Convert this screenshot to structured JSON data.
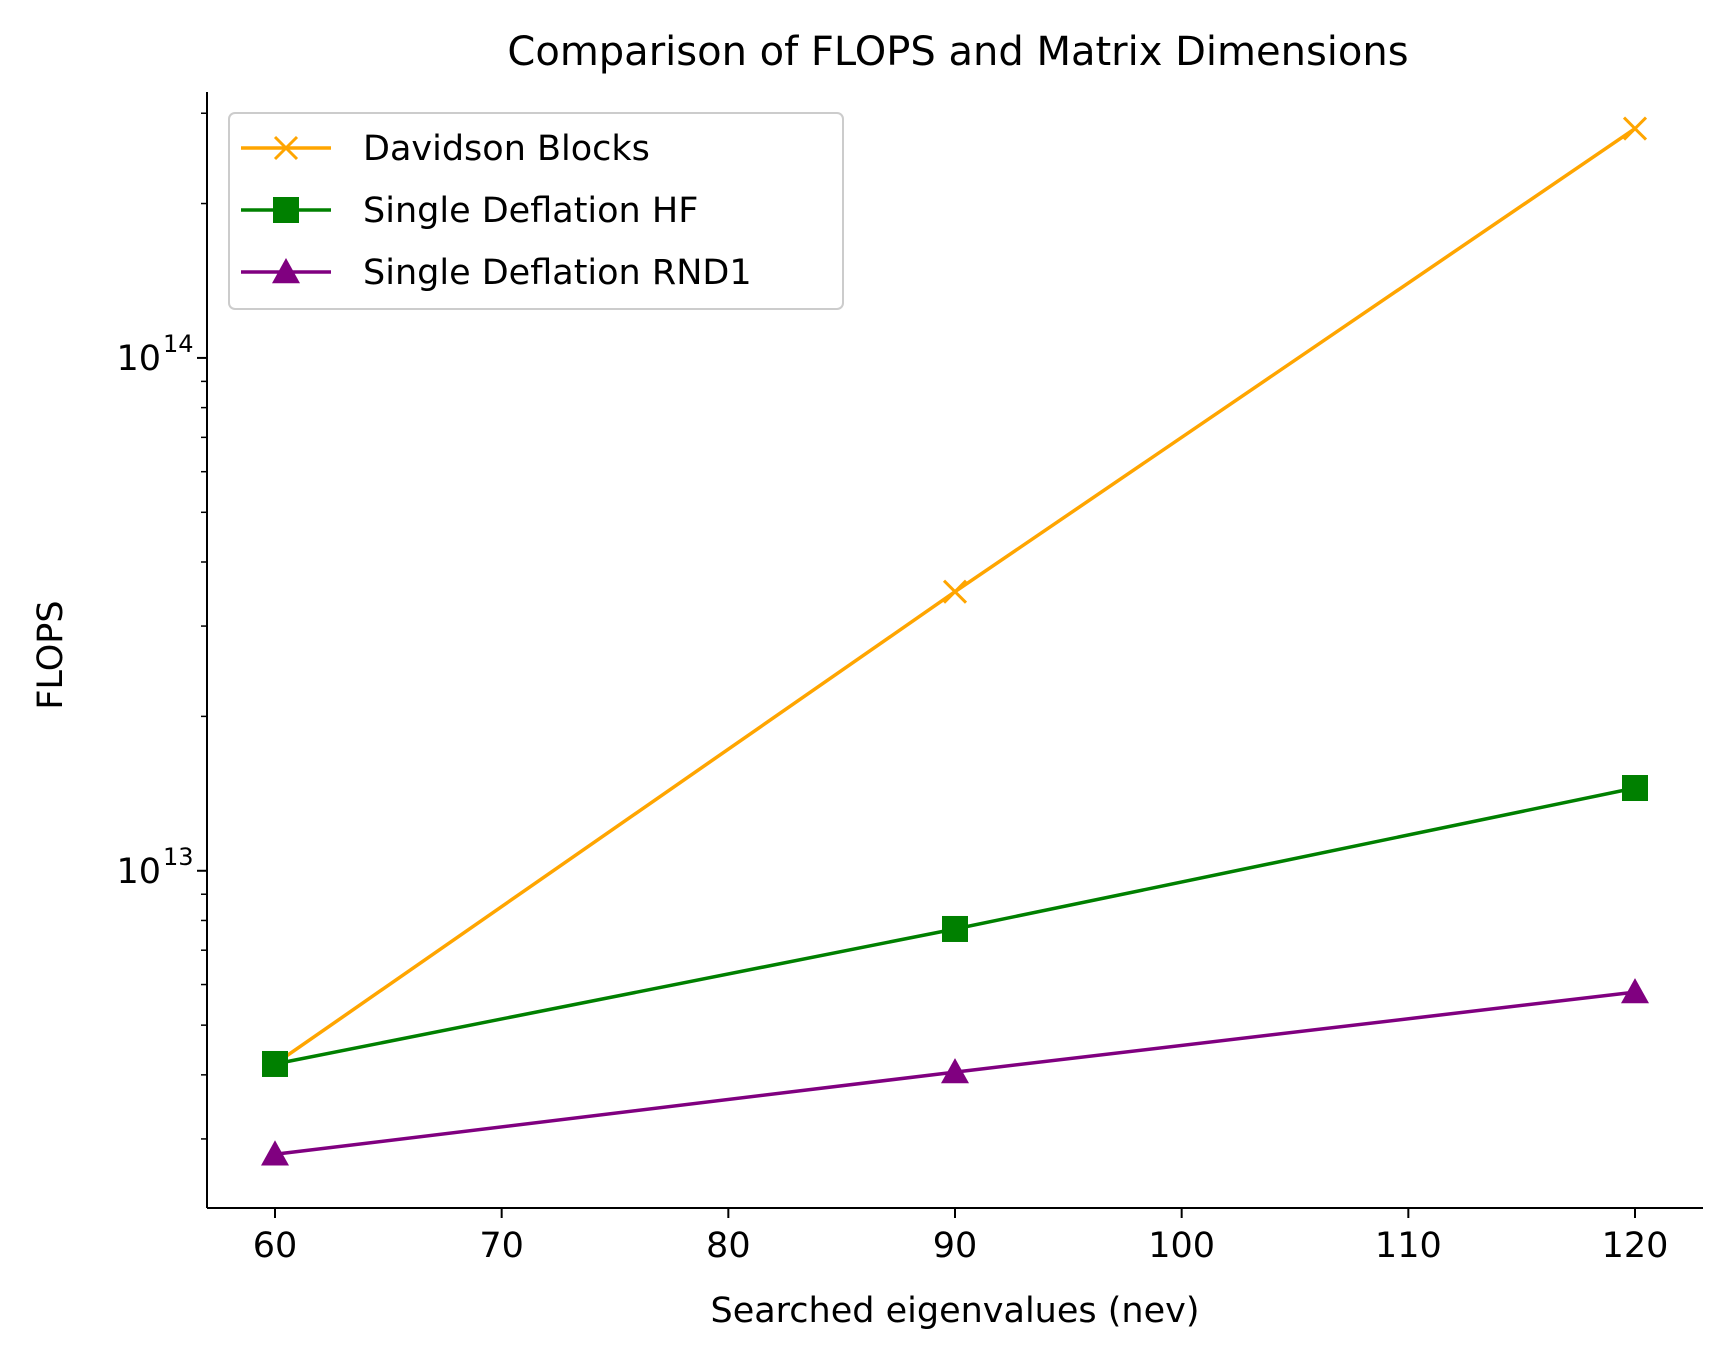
{
  "chart_data": {
    "type": "line",
    "title": "Comparison of FLOPS and Matrix Dimensions",
    "xlabel": "Searched eigenvalues (nev)",
    "ylabel": "FLOPS",
    "x": [
      60,
      90,
      120
    ],
    "xlim": [
      57,
      123
    ],
    "xticks": [
      "60",
      "70",
      "80",
      "90",
      "100",
      "110",
      "120"
    ],
    "yscale": "log",
    "ylim": [
      2200000000000.0,
      330000000000000.0
    ],
    "yticks": [
      {
        "base": "10",
        "exp": "13",
        "value": 10000000000000.0
      },
      {
        "base": "10",
        "exp": "14",
        "value": 100000000000000.0
      }
    ],
    "grid": false,
    "legend_position": "top-left",
    "series": [
      {
        "name": "Davidson Blocks",
        "color": "#FFA500",
        "marker": "x",
        "values": [
          4200000000000.0,
          35000000000000.0,
          280000000000000.0
        ]
      },
      {
        "name": "Single Deflation HF",
        "color": "#008000",
        "marker": "square",
        "values": [
          4200000000000.0,
          7700000000000.0,
          14500000000000.0
        ]
      },
      {
        "name": "Single Deflation RND1",
        "color": "#800080",
        "marker": "triangle",
        "values": [
          2800000000000.0,
          4050000000000.0,
          5800000000000.0
        ]
      }
    ]
  }
}
